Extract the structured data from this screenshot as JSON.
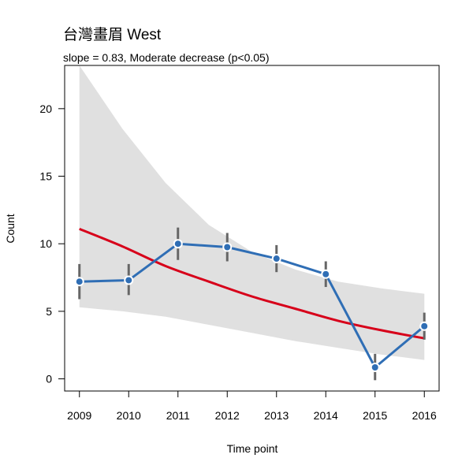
{
  "chart_data": {
    "type": "line",
    "title": "台灣畫眉 West",
    "subtitle": "slope = 0.83, Moderate decrease (p<0.05)",
    "xlabel": "Time point",
    "ylabel": "Count",
    "x": [
      2009,
      2010,
      2011,
      2012,
      2013,
      2014,
      2015,
      2016
    ],
    "xticks": [
      "2009",
      "2010",
      "2011",
      "2012",
      "2013",
      "2014",
      "2015",
      "2016"
    ],
    "yticks": [
      "0",
      "5",
      "10",
      "15",
      "20"
    ],
    "xlim": [
      2008.7,
      2016.3
    ],
    "ylim": [
      -0.9,
      23.2
    ],
    "grid": false,
    "observed": {
      "color": "#2f6eb5",
      "values": [
        7.2,
        7.3,
        10.0,
        9.75,
        8.9,
        7.75,
        0.85,
        3.9
      ],
      "lower": [
        5.9,
        6.2,
        8.8,
        8.7,
        7.9,
        6.8,
        -0.1,
        2.9
      ],
      "upper": [
        8.5,
        8.5,
        11.2,
        10.8,
        9.9,
        8.7,
        1.85,
        4.9
      ],
      "errorbar_color": "#666666"
    },
    "trend": {
      "color": "#d7001a",
      "values": [
        11.1,
        9.8,
        8.35,
        7.2,
        6.1,
        5.2,
        4.3,
        3.6,
        3.0
      ],
      "x": [
        2009,
        2009.875,
        2010.75,
        2011.625,
        2012.5,
        2013.375,
        2014.25,
        2015.125,
        2016
      ]
    },
    "confidence_band": {
      "color": "#e0e0e0",
      "x": [
        2009,
        2009.875,
        2010.75,
        2011.625,
        2012.5,
        2013.375,
        2014.25,
        2015.125,
        2016
      ],
      "upper": [
        23.2,
        18.5,
        14.5,
        11.4,
        9.4,
        8.1,
        7.2,
        6.7,
        6.3
      ],
      "lower": [
        5.3,
        5.0,
        4.6,
        4.0,
        3.4,
        2.8,
        2.3,
        1.8,
        1.4
      ]
    }
  }
}
